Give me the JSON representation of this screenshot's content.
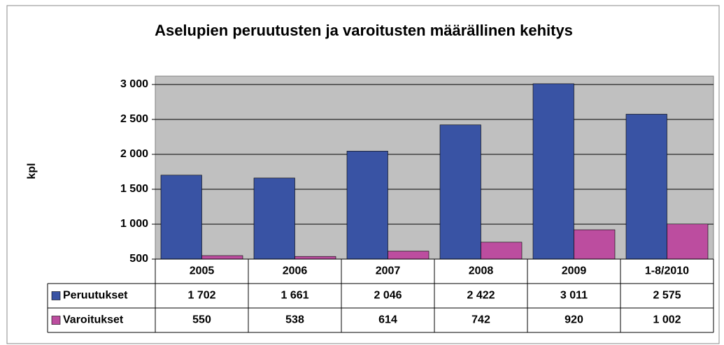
{
  "chart_data": {
    "type": "bar",
    "title": "Aselupien peruutusten ja varoitusten määrällinen kehitys",
    "y_label": "kpl",
    "categories": [
      "2005",
      "2006",
      "2007",
      "2008",
      "2009",
      "1-8/2010"
    ],
    "series": [
      {
        "name": "Peruutukset",
        "color": "#3953a4",
        "values": [
          1702,
          1661,
          2046,
          2422,
          3011,
          2575
        ],
        "value_labels": [
          "1 702",
          "1 661",
          "2 046",
          "2 422",
          "3 011",
          "2 575"
        ]
      },
      {
        "name": "Varoitukset",
        "color": "#bc4d9f",
        "values": [
          550,
          538,
          614,
          742,
          920,
          1002
        ],
        "value_labels": [
          "550",
          "538",
          "614",
          "742",
          "920",
          "1 002"
        ]
      }
    ],
    "ylim": [
      500,
      3000
    ],
    "yticks": [
      500,
      {
        "value": 1000,
        "label": "1 000"
      },
      {
        "value": 1500,
        "label": "1 500"
      },
      {
        "value": 2000,
        "label": "2 000"
      },
      {
        "value": 2500,
        "label": "2 500"
      },
      {
        "value": 3000,
        "label": "3 000"
      }
    ],
    "grid": true
  }
}
